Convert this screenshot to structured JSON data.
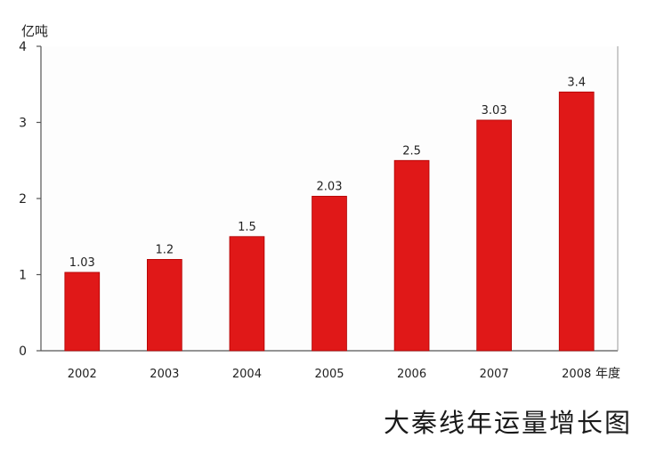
{
  "chart_data": {
    "type": "bar",
    "title": "大秦线年运量增长图",
    "ylabel": "亿吨",
    "xlabel": "年度",
    "categories": [
      "2002",
      "2003",
      "2004",
      "2005",
      "2006",
      "2007",
      "2008"
    ],
    "values": [
      1.03,
      1.2,
      1.5,
      2.03,
      2.5,
      3.03,
      3.4
    ],
    "data_labels": [
      "1.03",
      "1.2",
      "1.5",
      "2.03",
      "2.5",
      "3.03",
      "3.4"
    ],
    "ylim": [
      0,
      4
    ],
    "yticks": [
      "0",
      "1",
      "2",
      "3",
      "4"
    ],
    "grid": false,
    "bar_color": "#e01818",
    "plot_background": "#fdfdfd"
  }
}
